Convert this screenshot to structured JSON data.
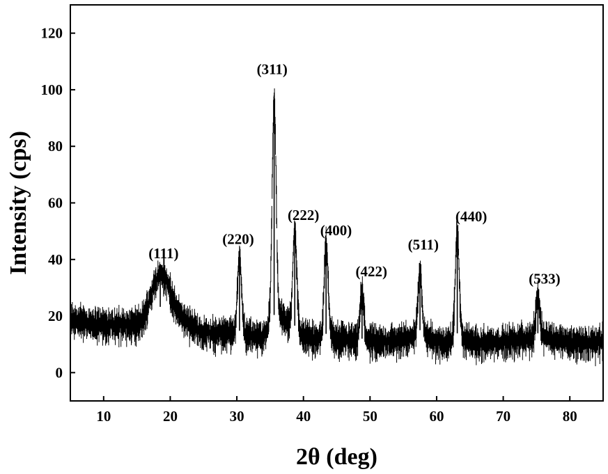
{
  "chart_data": {
    "type": "line",
    "title": "",
    "xlabel": "2θ (deg)",
    "ylabel": "Intensity (cps)",
    "xlim": [
      5,
      85
    ],
    "ylim": [
      -10,
      130
    ],
    "xticks": [
      10,
      20,
      30,
      40,
      50,
      60,
      70,
      80
    ],
    "yticks": [
      0,
      20,
      40,
      60,
      80,
      100,
      120
    ],
    "xtick_labels": [
      "10",
      "20",
      "30",
      "40",
      "50",
      "60",
      "70",
      "80"
    ],
    "ytick_labels": [
      "0",
      "20",
      "40",
      "60",
      "80",
      "100",
      "120"
    ],
    "grid": false,
    "legend": "none",
    "line_color": "#000000",
    "baseline_profile": {
      "x": [
        5,
        10,
        15,
        17,
        19,
        21,
        23,
        25,
        28,
        30,
        32,
        34,
        36,
        38,
        40,
        42,
        44,
        46,
        48,
        50,
        52,
        55,
        57.5,
        60,
        62,
        63,
        65,
        70,
        75,
        80,
        85
      ],
      "y": [
        20,
        18,
        18,
        21,
        24,
        22,
        18,
        15,
        15,
        15,
        14,
        14,
        22,
        18,
        14,
        13,
        14,
        13,
        12,
        12,
        12,
        13,
        15,
        12,
        12,
        14,
        12,
        12,
        14,
        12,
        12
      ]
    },
    "noise_amplitude": 5,
    "series": [
      {
        "name": "",
        "peaks": [
          {
            "label": "(111)",
            "x": 18.5,
            "y": 36
          },
          {
            "label": "(220)",
            "x": 30.4,
            "y": 43
          },
          {
            "label": "(311)",
            "x": 35.6,
            "y": 98
          },
          {
            "label": "(222)",
            "x": 38.7,
            "y": 52
          },
          {
            "label": "(400)",
            "x": 43.4,
            "y": 47
          },
          {
            "label": "(422)",
            "x": 48.8,
            "y": 30
          },
          {
            "label": "(511)",
            "x": 57.5,
            "y": 37
          },
          {
            "label": "(440)",
            "x": 63.1,
            "y": 51
          },
          {
            "label": "(533)",
            "x": 75.2,
            "y": 28
          }
        ]
      }
    ],
    "annotations": [
      {
        "text": "(111)",
        "x": 19.0,
        "y": 40.5
      },
      {
        "text": "(220)",
        "x": 30.2,
        "y": 45.5
      },
      {
        "text": "(311)",
        "x": 35.3,
        "y": 105.5
      },
      {
        "text": "(222)",
        "x": 40.0,
        "y": 54.0
      },
      {
        "text": "(400)",
        "x": 44.9,
        "y": 48.5
      },
      {
        "text": "(422)",
        "x": 50.2,
        "y": 34.0
      },
      {
        "text": "(511)",
        "x": 58.0,
        "y": 43.5
      },
      {
        "text": "(440)",
        "x": 65.2,
        "y": 53.5
      },
      {
        "text": "(533)",
        "x": 76.2,
        "y": 31.5
      }
    ]
  }
}
